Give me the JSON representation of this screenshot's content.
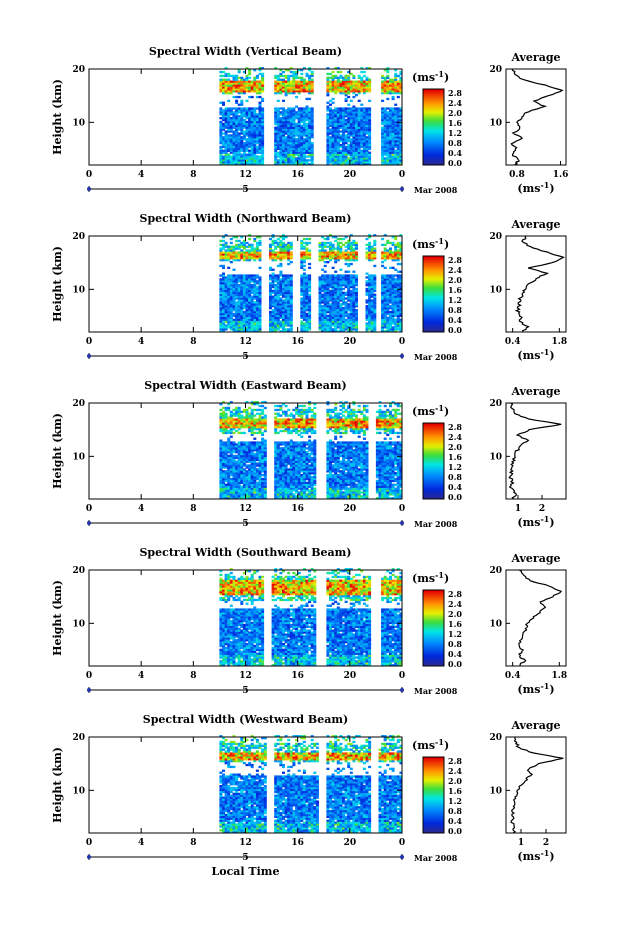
{
  "chart_data": [
    {
      "type": "heatmap",
      "title": "Spectral Width (Vertical Beam)",
      "ylabel": "Height (km)",
      "y_ticks": [
        "20",
        "10"
      ],
      "x_ticks": [
        "0",
        "4",
        "8",
        "12",
        "16",
        "20",
        "0"
      ],
      "xlim": [
        0,
        24
      ],
      "ylim": [
        2,
        20
      ],
      "date_label": "5",
      "date_suffix": "Mar 2008",
      "colorbar": {
        "unit": "(ms",
        "exp": "-1",
        "ticks": [
          "2.8",
          "2.4",
          "2.0",
          "1.6",
          "1.2",
          "0.8",
          "0.4",
          "0.0"
        ]
      },
      "data_start_hour": 10,
      "gaps_hour": [
        [
          13.5,
          14.0
        ],
        [
          17.3,
          18.0
        ],
        [
          21.6,
          22.3
        ]
      ],
      "tropopause_band_km": [
        15.5,
        17.5
      ],
      "upper_gap_km": [
        12.5,
        15.0
      ],
      "average": {
        "title": "Average",
        "y_ticks": [
          "20",
          "10"
        ],
        "x_ticks": [
          "0.8",
          "1.6"
        ],
        "xlim": [
          0.6,
          1.7
        ],
        "unit": "(ms",
        "exp": "-1",
        "profile": [
          [
            0.75,
            2
          ],
          [
            0.85,
            3
          ],
          [
            0.7,
            4
          ],
          [
            0.8,
            5
          ],
          [
            0.72,
            6
          ],
          [
            0.9,
            7
          ],
          [
            0.75,
            8
          ],
          [
            0.85,
            9
          ],
          [
            0.8,
            10
          ],
          [
            0.9,
            11
          ],
          [
            1.0,
            12
          ],
          [
            1.3,
            13
          ],
          [
            1.1,
            14
          ],
          [
            1.4,
            15
          ],
          [
            1.65,
            16
          ],
          [
            1.3,
            17
          ],
          [
            0.9,
            18
          ],
          [
            0.75,
            19
          ],
          [
            0.72,
            20
          ]
        ]
      }
    },
    {
      "type": "heatmap",
      "title": "Spectral Width (Northward Beam)",
      "ylabel": "Height (km)",
      "y_ticks": [
        "20",
        "10"
      ],
      "x_ticks": [
        "0",
        "4",
        "8",
        "12",
        "16",
        "20",
        "0"
      ],
      "xlim": [
        0,
        24
      ],
      "ylim": [
        2,
        20
      ],
      "date_label": "5",
      "date_suffix": "Mar 2008",
      "colorbar": {
        "unit": "(ms",
        "exp": "-1",
        "ticks": [
          "2.8",
          "2.4",
          "2.0",
          "1.6",
          "1.2",
          "0.8",
          "0.4",
          "0.0"
        ]
      },
      "data_start_hour": 10,
      "gaps_hour": [
        [
          13.2,
          13.6
        ],
        [
          15.7,
          16.0
        ],
        [
          17.0,
          17.4
        ],
        [
          20.7,
          21.0
        ],
        [
          22.0,
          22.3
        ]
      ],
      "tropopause_band_km": [
        15.5,
        17.0
      ],
      "upper_gap_km": [
        12.5,
        15.0
      ],
      "average": {
        "title": "Average",
        "y_ticks": [
          "20",
          "10"
        ],
        "x_ticks": [
          "0.4",
          "1.8"
        ],
        "xlim": [
          0.2,
          2.0
        ],
        "unit": "(ms",
        "exp": "-1",
        "profile": [
          [
            0.7,
            2
          ],
          [
            0.85,
            3
          ],
          [
            0.6,
            4
          ],
          [
            0.65,
            5
          ],
          [
            0.55,
            6
          ],
          [
            0.6,
            7
          ],
          [
            0.6,
            8
          ],
          [
            0.7,
            9
          ],
          [
            0.75,
            10
          ],
          [
            0.9,
            11
          ],
          [
            1.1,
            12
          ],
          [
            1.4,
            13
          ],
          [
            0.9,
            14
          ],
          [
            1.6,
            15
          ],
          [
            1.9,
            16
          ],
          [
            1.4,
            17
          ],
          [
            0.9,
            18
          ],
          [
            0.7,
            19
          ],
          [
            0.8,
            20
          ]
        ]
      }
    },
    {
      "type": "heatmap",
      "title": "Spectral Width (Eastward Beam)",
      "ylabel": "Height (km)",
      "y_ticks": [
        "20",
        "10"
      ],
      "x_ticks": [
        "0",
        "4",
        "8",
        "12",
        "16",
        "20",
        "0"
      ],
      "xlim": [
        0,
        24
      ],
      "ylim": [
        2,
        20
      ],
      "date_label": "5",
      "date_suffix": "Mar 2008",
      "colorbar": {
        "unit": "(ms",
        "exp": "-1",
        "ticks": [
          "2.8",
          "2.4",
          "2.0",
          "1.6",
          "1.2",
          "0.8",
          "0.4",
          "0.0"
        ]
      },
      "data_start_hour": 10,
      "gaps_hour": [
        [
          13.6,
          14.0
        ],
        [
          17.5,
          18.0
        ],
        [
          21.4,
          21.8
        ]
      ],
      "tropopause_band_km": [
        15.0,
        17.0
      ],
      "upper_gap_km": [
        12.5,
        14.0
      ],
      "average": {
        "title": "Average",
        "y_ticks": [
          "20",
          "10"
        ],
        "x_ticks": [
          "1",
          "2"
        ],
        "xlim": [
          0.5,
          3.0
        ],
        "unit": "(ms",
        "exp": "-1",
        "profile": [
          [
            0.8,
            2
          ],
          [
            0.9,
            3
          ],
          [
            0.7,
            4
          ],
          [
            0.75,
            5
          ],
          [
            0.7,
            6
          ],
          [
            0.72,
            7
          ],
          [
            0.75,
            8
          ],
          [
            0.8,
            9
          ],
          [
            0.85,
            10
          ],
          [
            0.95,
            11
          ],
          [
            1.1,
            12
          ],
          [
            1.4,
            13
          ],
          [
            1.0,
            14
          ],
          [
            1.5,
            15
          ],
          [
            2.8,
            16
          ],
          [
            1.4,
            17
          ],
          [
            0.9,
            18
          ],
          [
            0.75,
            19
          ],
          [
            0.7,
            20
          ]
        ]
      }
    },
    {
      "type": "heatmap",
      "title": "Spectral Width (Southward Beam)",
      "ylabel": "Height (km)",
      "y_ticks": [
        "20",
        "10"
      ],
      "x_ticks": [
        "0",
        "4",
        "8",
        "12",
        "16",
        "20",
        "0"
      ],
      "xlim": [
        0,
        24
      ],
      "ylim": [
        2,
        20
      ],
      "date_label": "5",
      "date_suffix": "Mar 2008",
      "colorbar": {
        "unit": "(ms",
        "exp": "-1",
        "ticks": [
          "2.8",
          "2.4",
          "2.0",
          "1.6",
          "1.2",
          "0.8",
          "0.4",
          "0.0"
        ]
      },
      "data_start_hour": 10,
      "gaps_hour": [
        [
          13.5,
          13.9
        ],
        [
          17.5,
          18.0
        ],
        [
          21.7,
          22.2
        ]
      ],
      "tropopause_band_km": [
        15.0,
        18.0
      ],
      "upper_gap_km": [
        12.5,
        14.0
      ],
      "average": {
        "title": "Average",
        "y_ticks": [
          "20",
          "10"
        ],
        "x_ticks": [
          "0.4",
          "1.8"
        ],
        "xlim": [
          0.2,
          2.0
        ],
        "unit": "(ms",
        "exp": "-1",
        "profile": [
          [
            0.6,
            2
          ],
          [
            0.75,
            3
          ],
          [
            0.6,
            4
          ],
          [
            0.7,
            5
          ],
          [
            0.6,
            6
          ],
          [
            0.65,
            7
          ],
          [
            0.7,
            8
          ],
          [
            0.8,
            9
          ],
          [
            0.85,
            10
          ],
          [
            1.0,
            11
          ],
          [
            1.2,
            12
          ],
          [
            1.4,
            13
          ],
          [
            1.2,
            14
          ],
          [
            1.6,
            15
          ],
          [
            1.85,
            16
          ],
          [
            1.5,
            17
          ],
          [
            0.9,
            18
          ],
          [
            0.7,
            19
          ],
          [
            0.6,
            20
          ]
        ]
      }
    },
    {
      "type": "heatmap",
      "title": "Spectral Width (Westward Beam)",
      "ylabel": "Height (km)",
      "y_ticks": [
        "20",
        "10"
      ],
      "x_ticks": [
        "0",
        "4",
        "8",
        "12",
        "16",
        "20",
        "0"
      ],
      "xlim": [
        0,
        24
      ],
      "ylim": [
        2,
        20
      ],
      "date_label": "5",
      "date_suffix": "Mar 2008",
      "xlabel": "Local Time",
      "colorbar": {
        "unit": "(ms",
        "exp": "-1",
        "ticks": [
          "2.8",
          "2.4",
          "2.0",
          "1.6",
          "1.2",
          "0.8",
          "0.4",
          "0.0"
        ]
      },
      "data_start_hour": 10,
      "gaps_hour": [
        [
          13.6,
          14.0
        ],
        [
          17.6,
          18.0
        ],
        [
          21.6,
          22.0
        ]
      ],
      "tropopause_band_km": [
        15.5,
        17.0
      ],
      "upper_gap_km": [
        12.5,
        15.0
      ],
      "average": {
        "title": "Average",
        "y_ticks": [
          "20",
          "10"
        ],
        "x_ticks": [
          "1",
          "2"
        ],
        "xlim": [
          0.4,
          2.8
        ],
        "unit": "(ms",
        "exp": "-1",
        "profile": [
          [
            0.7,
            2
          ],
          [
            0.75,
            3
          ],
          [
            0.65,
            4
          ],
          [
            0.7,
            5
          ],
          [
            0.65,
            6
          ],
          [
            0.7,
            7
          ],
          [
            0.75,
            8
          ],
          [
            0.8,
            9
          ],
          [
            0.85,
            10
          ],
          [
            1.0,
            11
          ],
          [
            1.2,
            12
          ],
          [
            1.4,
            13
          ],
          [
            1.3,
            14
          ],
          [
            1.7,
            15
          ],
          [
            2.7,
            16
          ],
          [
            1.5,
            17
          ],
          [
            0.9,
            18
          ],
          [
            0.8,
            19
          ],
          [
            0.75,
            20
          ]
        ]
      }
    }
  ]
}
